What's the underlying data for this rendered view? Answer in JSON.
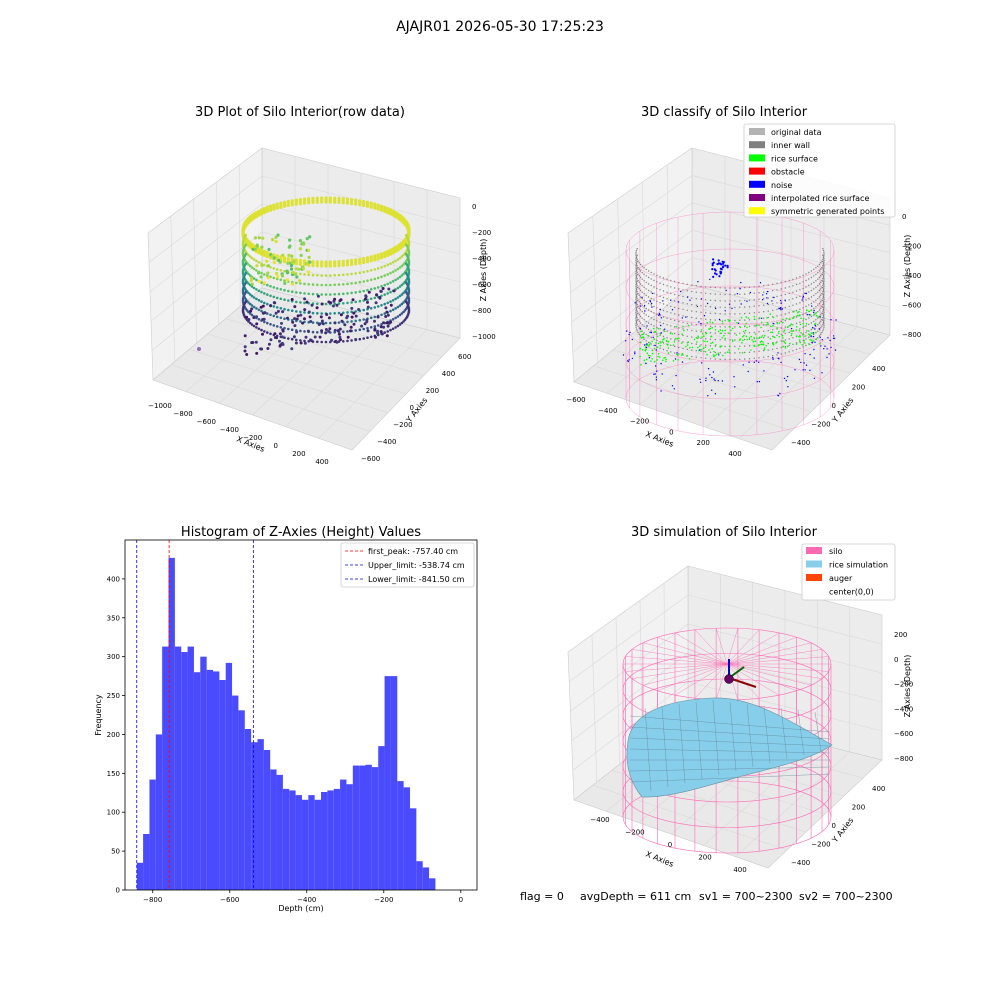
{
  "figure": {
    "suptitle": "AJAJR01 2026-05-30 17:25:23",
    "footer": {
      "flag": "flag = 0",
      "avg_depth": "avgDepth = 611 cm",
      "sv1": "sv1 = 700~2300",
      "sv2": "sv2 = 700~2300"
    }
  },
  "colors": {
    "pane": "#f2f2f2",
    "pane_side": "#e6e6e6",
    "grid": "#d9d9d9",
    "hist_bar": "#4a4aff",
    "first_peak": "#ff0000",
    "limit_line": "#0000ff",
    "silo": "#ff69b4",
    "rice_sim": "#87ceeb",
    "auger": "#ff4500",
    "inner_wall": "#808080",
    "rice_surface": "#00ff00",
    "noise": "#0000ff",
    "original": "#b3b3b3",
    "obstacle": "#ff0000",
    "interpolated": "#800080",
    "symmetric": "#ffff00"
  },
  "chart_data": [
    {
      "type": "scatter3d",
      "title": "3D Plot of Silo Interior(row data)",
      "xlabel": "X Axies",
      "ylabel": "Y Axies",
      "zlabel": "Z Axies (Depth)",
      "xticks": [
        "−1000",
        "−800",
        "−600",
        "−400",
        "−200",
        "0",
        "200",
        "400"
      ],
      "yticks": [
        "600",
        "400",
        "200",
        "0",
        "−200",
        "−400",
        "−600"
      ],
      "zticks": [
        "0",
        "−200",
        "−400",
        "−600",
        "−800",
        "−1000"
      ],
      "colormap": "viridis",
      "xlim": [
        -1050,
        450
      ],
      "ylim": [
        -650,
        650
      ],
      "zlim": [
        -1050,
        0
      ]
    },
    {
      "type": "scatter3d",
      "title": "3D classify of Silo Interior",
      "xlabel": "X Axies",
      "ylabel": "Y Axies",
      "zlabel": "Z Axies (Depth)",
      "xticks": [
        "−600",
        "−400",
        "−200",
        "0",
        "200",
        "400"
      ],
      "yticks": [
        "400",
        "200",
        "0",
        "−200",
        "−400"
      ],
      "zticks": [
        "0",
        "−200",
        "−400",
        "−600",
        "−800"
      ],
      "legend": [
        {
          "label": "original data",
          "color": "#b3b3b3"
        },
        {
          "label": "inner wall",
          "color": "#808080"
        },
        {
          "label": "rice surface",
          "color": "#00ff00"
        },
        {
          "label": "obstacle",
          "color": "#ff0000"
        },
        {
          "label": "noise",
          "color": "#0000ff"
        },
        {
          "label": "interpolated rice surface",
          "color": "#800080"
        },
        {
          "label": "symmetric generated points",
          "color": "#ffff00"
        }
      ],
      "legend_position": "upper right"
    },
    {
      "type": "bar",
      "title": "Histogram of Z-Axies (Height) Values",
      "xlabel": "Depth (cm)",
      "ylabel": "Frequency",
      "xlim": [
        -872,
        42
      ],
      "ylim": [
        0,
        450
      ],
      "xticks": [
        -800,
        -600,
        -400,
        -200,
        0
      ],
      "xtick_labels": [
        "−800",
        "−600",
        "−400",
        "−200",
        "0"
      ],
      "yticks": [
        0,
        50,
        100,
        150,
        200,
        250,
        300,
        350,
        400
      ],
      "bin_start": -841.5,
      "bin_width": 16.5,
      "values": [
        35,
        72,
        142,
        200,
        313,
        427,
        313,
        306,
        313,
        280,
        300,
        283,
        281,
        270,
        292,
        250,
        231,
        207,
        190,
        194,
        180,
        155,
        148,
        130,
        128,
        122,
        116,
        122,
        116,
        126,
        128,
        130,
        142,
        136,
        160,
        160,
        161,
        158,
        185,
        275,
        275,
        140,
        132,
        105,
        37,
        29,
        15
      ],
      "vlines": [
        {
          "x": -757.4,
          "label": "first_peak: -757.40 cm",
          "color": "#ff0000"
        },
        {
          "x": -538.74,
          "label": "Upper_limit: -538.74 cm",
          "color": "#0000ff"
        },
        {
          "x": -841.5,
          "label": "Lower_limit: -841.50 cm",
          "color": "#0000ff"
        }
      ],
      "legend_position": "upper right"
    },
    {
      "type": "surface3d",
      "title": "3D simulation of Silo Interior",
      "xlabel": "X Axies",
      "ylabel": "Y Axies",
      "zlabel": "Z Axies (Depth)",
      "xticks": [
        "−400",
        "−200",
        "0",
        "200",
        "400"
      ],
      "yticks": [
        "400",
        "200",
        "0",
        "−200",
        "−400"
      ],
      "zticks": [
        "200",
        "0",
        "−200",
        "−400",
        "−600",
        "−800"
      ],
      "legend": [
        {
          "label": "silo",
          "color": "#ff69b4"
        },
        {
          "label": "rice simulation",
          "color": "#87ceeb"
        },
        {
          "label": "auger",
          "color": "#ff4500"
        },
        {
          "label": "center(0,0)",
          "color": ""
        }
      ],
      "legend_position": "upper right"
    }
  ]
}
